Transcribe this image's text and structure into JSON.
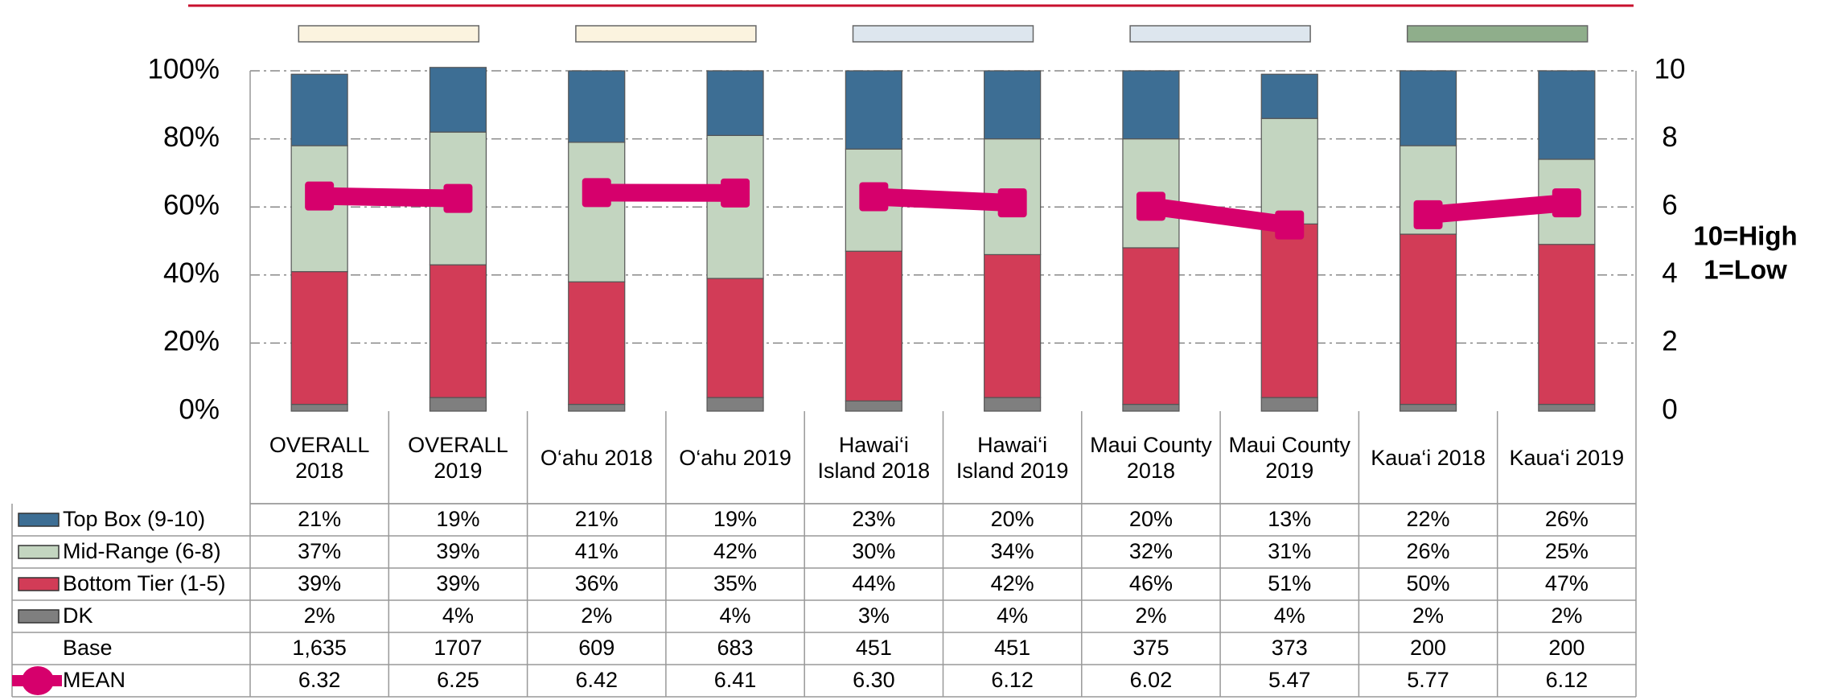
{
  "chart_data": {
    "type": "stacked_bar_line",
    "categories": [
      "OVERALL 2018",
      "OVERALL 2019",
      "O‘ahu 2018",
      "O‘ahu 2019",
      "Hawai‘i Island 2018",
      "Hawai‘i Island 2019",
      "Maui County 2018",
      "Maui County 2019",
      "Kaua‘i 2018",
      "Kaua‘i 2019"
    ],
    "series": [
      {
        "name": "Top Box (9-10)",
        "color": "#3d6e94",
        "values": [
          21,
          19,
          21,
          19,
          23,
          20,
          20,
          13,
          22,
          26
        ],
        "value_labels": [
          "21%",
          "19%",
          "21%",
          "19%",
          "23%",
          "20%",
          "20%",
          "13%",
          "22%",
          "26%"
        ]
      },
      {
        "name": "Mid-Range (6-8)",
        "color": "#c3d5c0",
        "values": [
          37,
          39,
          41,
          42,
          30,
          34,
          32,
          31,
          26,
          25
        ],
        "value_labels": [
          "37%",
          "39%",
          "41%",
          "42%",
          "30%",
          "34%",
          "32%",
          "31%",
          "26%",
          "25%"
        ]
      },
      {
        "name": "Bottom Tier (1-5)",
        "color": "#d23c57",
        "values": [
          39,
          39,
          36,
          35,
          44,
          42,
          46,
          51,
          50,
          47
        ],
        "value_labels": [
          "39%",
          "39%",
          "36%",
          "35%",
          "44%",
          "42%",
          "46%",
          "51%",
          "50%",
          "47%"
        ]
      },
      {
        "name": "DK",
        "color": "#7f7f7f",
        "values": [
          2,
          4,
          2,
          4,
          3,
          4,
          2,
          4,
          2,
          2
        ],
        "value_labels": [
          "2%",
          "4%",
          "2%",
          "4%",
          "3%",
          "4%",
          "2%",
          "4%",
          "2%",
          "2%"
        ]
      },
      {
        "name": "Base",
        "values": [
          1635,
          1707,
          609,
          683,
          451,
          451,
          375,
          373,
          200,
          200
        ],
        "value_labels": [
          "1,635",
          "1707",
          "609",
          "683",
          "451",
          "451",
          "375",
          "373",
          "200",
          "200"
        ]
      },
      {
        "name": "MEAN",
        "color": "#d6006c",
        "axis": "y2",
        "values": [
          6.32,
          6.25,
          6.42,
          6.41,
          6.3,
          6.12,
          6.02,
          5.47,
          5.77,
          6.12
        ],
        "value_labels": [
          "6.32",
          "6.25",
          "6.42",
          "6.41",
          "6.30",
          "6.12",
          "6.02",
          "5.47",
          "5.77",
          "6.12"
        ]
      }
    ],
    "ylim": [
      0,
      100
    ],
    "yticks": [
      {
        "value": 0,
        "label": "0%"
      },
      {
        "value": 20,
        "label": "20%"
      },
      {
        "value": 40,
        "label": "40%"
      },
      {
        "value": 60,
        "label": "60%"
      },
      {
        "value": 80,
        "label": "80%"
      },
      {
        "value": 100,
        "label": "100%"
      }
    ],
    "y2lim": [
      0,
      10
    ],
    "y2ticks": [
      0,
      2,
      4,
      6,
      8,
      10
    ],
    "annotations": [
      "10=High",
      "1=Low"
    ],
    "grid": true
  }
}
